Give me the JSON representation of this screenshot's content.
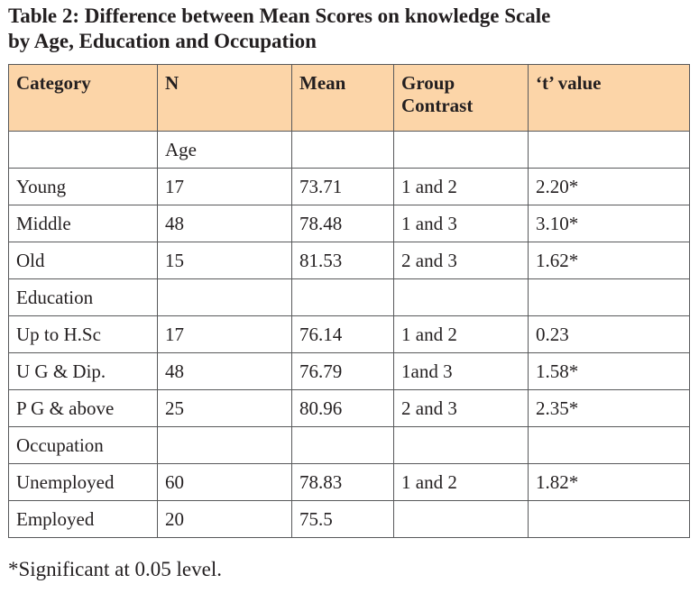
{
  "title": "Table 2: Difference between Mean Scores on knowledge Scale\nby Age, Education and Occupation",
  "table": {
    "headers": [
      "Category",
      "N",
      "Mean",
      "Group\nContrast",
      "‘t’ value"
    ],
    "rows": [
      [
        "",
        "Age",
        "",
        "",
        ""
      ],
      [
        "Young",
        "17",
        "73.71",
        "1 and 2",
        "2.20*"
      ],
      [
        "Middle",
        "48",
        "78.48",
        "1 and 3",
        "3.10*"
      ],
      [
        "Old",
        "15",
        "81.53",
        "2 and 3",
        "1.62*"
      ],
      [
        "Education",
        "",
        "",
        "",
        ""
      ],
      [
        "Up to H.Sc",
        "17",
        "76.14",
        "1 and 2",
        "0.23"
      ],
      [
        "U G & Dip.",
        "48",
        "76.79",
        "1and 3",
        "1.58*"
      ],
      [
        "P G & above",
        "25",
        "80.96",
        "2 and 3",
        "2.35*"
      ],
      [
        "Occupation",
        "",
        "",
        "",
        ""
      ],
      [
        "Unemployed",
        "60",
        "78.83",
        "1 and 2",
        "1.82*"
      ],
      [
        "Employed",
        "20",
        "75.5",
        "",
        ""
      ]
    ]
  },
  "footnote": "*Significant at 0.05 level.",
  "colors": {
    "header_background": "#fcd5a8",
    "border": "#58595b",
    "text": "#231f20"
  }
}
